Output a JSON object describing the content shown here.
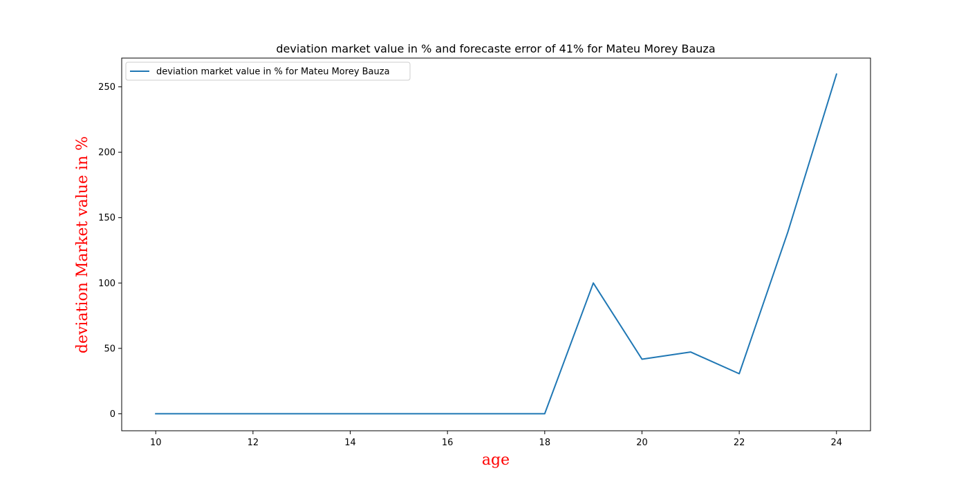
{
  "chart_data": {
    "type": "line",
    "title": "deviation market value in % and forecaste error of 41% for Mateu Morey Bauza",
    "xlabel": "age",
    "ylabel": "deviation Market value in %",
    "label_color": "#ff0000",
    "xlim": [
      9.3,
      24.7
    ],
    "ylim": [
      -13,
      272
    ],
    "xticks": [
      10,
      12,
      14,
      16,
      18,
      20,
      22,
      24
    ],
    "yticks": [
      0,
      50,
      100,
      150,
      200,
      250
    ],
    "grid": false,
    "legend_position": "upper left",
    "series": [
      {
        "name": "deviation market value in % for Mateu Morey Bauza",
        "color": "#1f77b4",
        "x": [
          10,
          11,
          12,
          13,
          14,
          15,
          16,
          17,
          18,
          19,
          20,
          21,
          22,
          23,
          24
        ],
        "y": [
          0,
          0,
          0,
          0,
          0,
          0,
          0,
          0,
          0,
          100,
          41.7,
          47.2,
          30.6,
          138.9,
          259.7
        ]
      }
    ]
  }
}
